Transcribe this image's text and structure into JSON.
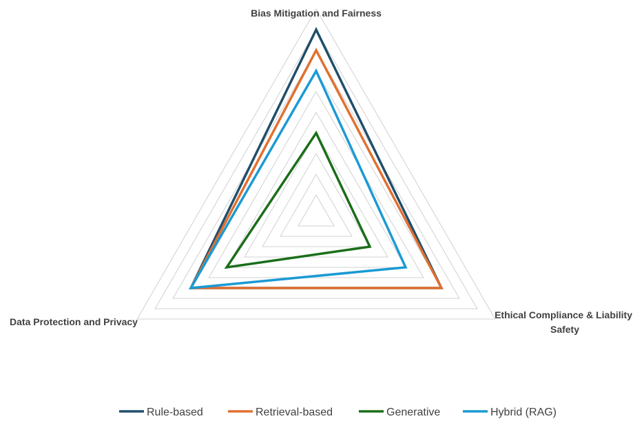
{
  "chart_data": {
    "type": "radar",
    "axes": [
      "Bias Mitigation and Fairness",
      "Ethical Compliance & Liability Safety",
      "Data Protection and Privacy"
    ],
    "scale": {
      "min": 0,
      "max": 10,
      "rings": 10
    },
    "series": [
      {
        "name": "Rule-based",
        "color": "#1f4e6b",
        "values": [
          9,
          7,
          7
        ]
      },
      {
        "name": "Retrieval-based",
        "color": "#e07030",
        "values": [
          8,
          7,
          7
        ]
      },
      {
        "name": "Generative",
        "color": "#1a6e1a",
        "values": [
          4,
          3,
          5
        ]
      },
      {
        "name": "Hybrid (RAG)",
        "color": "#1a9ad4",
        "values": [
          7,
          5,
          7
        ]
      }
    ],
    "grid": true,
    "legend_position": "bottom"
  }
}
